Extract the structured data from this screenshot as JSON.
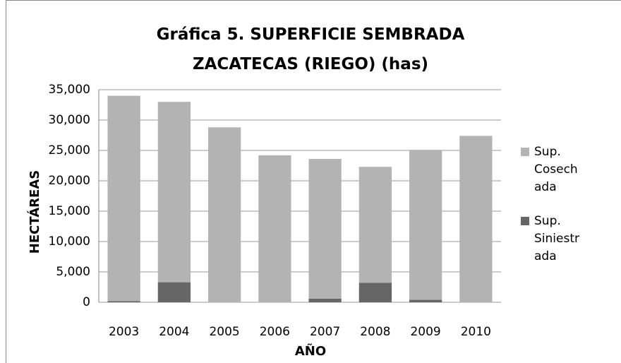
{
  "chart_data": {
    "type": "stacked_bar",
    "title": "Gráfica 5. SUPERFICIE SEMBRADA ZACATECAS (RIEGO) (has)",
    "x_label": "AÑO",
    "y_label": "HECTÁREAS",
    "categories": [
      "2003",
      "2004",
      "2005",
      "2006",
      "2007",
      "2008",
      "2009",
      "2010"
    ],
    "series": [
      {
        "name": "Sup. Cosechada",
        "color": "#b3b3b3",
        "values": [
          33800,
          29700,
          28800,
          24200,
          23000,
          19100,
          24700,
          27400
        ]
      },
      {
        "name": "Sup. Siniestrada",
        "color": "#666666",
        "values": [
          200,
          3300,
          0,
          0,
          600,
          3200,
          400,
          0
        ]
      }
    ],
    "ylim": [
      0,
      35000
    ],
    "yticks": [
      0,
      {
        "value": 5000,
        "label": "5,000"
      },
      {
        "value": 10000,
        "label": "10,000"
      },
      {
        "value": 15000,
        "label": "15,000"
      },
      {
        "value": 20000,
        "label": "20,000"
      },
      {
        "value": 25000,
        "label": "25,000"
      },
      {
        "value": 30000,
        "label": "30,000"
      },
      {
        "value": 35000,
        "label": "35,000"
      }
    ],
    "grid": true,
    "legend": "right"
  }
}
